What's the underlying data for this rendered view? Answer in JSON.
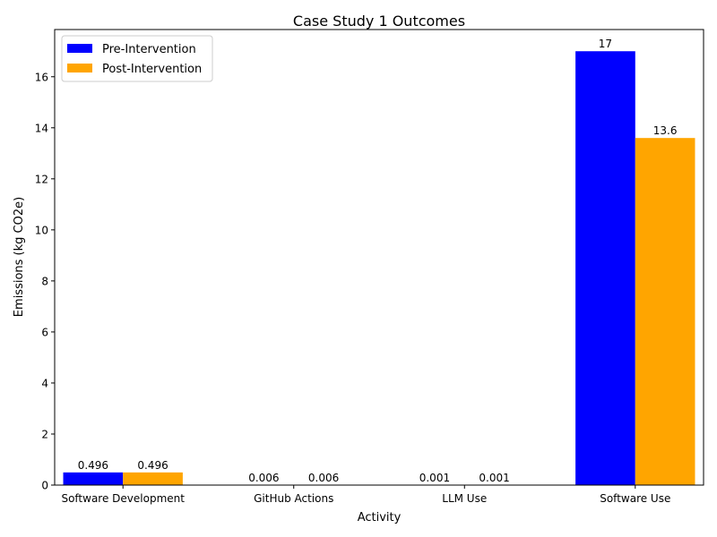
{
  "chart_data": {
    "type": "bar",
    "title": "Case Study 1 Outcomes",
    "xlabel": "Activity",
    "ylabel": "Emissions (kg CO2e)",
    "categories": [
      "Software Development",
      "GitHub Actions",
      "LLM Use",
      "Software Use"
    ],
    "series": [
      {
        "name": "Pre-Intervention",
        "color": "#0000ff",
        "values": [
          0.496,
          0.006,
          0.001,
          17
        ],
        "labels": [
          "0.496",
          "0.006",
          "0.001",
          "17"
        ]
      },
      {
        "name": "Post-Intervention",
        "color": "#ffa500",
        "values": [
          0.496,
          0.006,
          0.001,
          13.6
        ],
        "labels": [
          "0.496",
          "0.006",
          "0.001",
          "13.6"
        ]
      }
    ],
    "ylim": [
      0,
      17.85
    ],
    "yticks": [
      0,
      2,
      4,
      6,
      8,
      10,
      12,
      14,
      16
    ],
    "legend": "top-left",
    "grid": false
  }
}
